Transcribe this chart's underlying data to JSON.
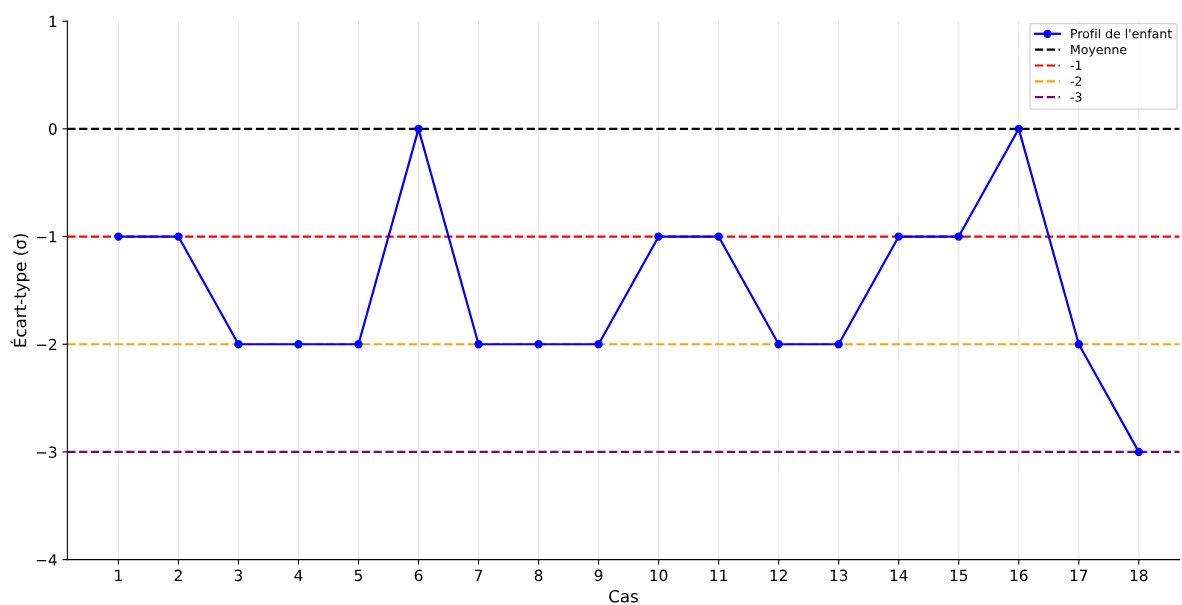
{
  "chart_data": {
    "type": "line",
    "xlabel": "Cas",
    "ylabel": "Écart-type (σ)",
    "categories": [
      "1",
      "2",
      "3",
      "4",
      "5",
      "6",
      "7",
      "8",
      "9",
      "10",
      "11",
      "12",
      "13",
      "14",
      "15",
      "16",
      "17",
      "18"
    ],
    "series": [
      {
        "name": "Profil de l'enfant",
        "color": "#0000ff",
        "values": [
          -1,
          -1,
          -2,
          -2,
          -2,
          0,
          -2,
          -2,
          -2,
          -1,
          -1,
          -2,
          -2,
          -1,
          -1,
          0,
          -2,
          -3
        ]
      }
    ],
    "marker": "circle",
    "line_style": "solid",
    "ylim": [
      -4,
      1
    ],
    "yticks": [
      {
        "value": -4,
        "label": "−4"
      },
      {
        "value": -3,
        "label": "−3"
      },
      {
        "value": -2,
        "label": "−2"
      },
      {
        "value": -1,
        "label": "−1"
      },
      0,
      1
    ],
    "ref_lines": [
      {
        "axis": "y",
        "value": 0,
        "label": "Moyenne",
        "color": "#000000",
        "line_style": "dashed"
      },
      {
        "axis": "y",
        "value": -1,
        "label": "-1",
        "color": "#ff0000",
        "line_style": "dashed"
      },
      {
        "axis": "y",
        "value": -2,
        "label": "-2",
        "color": "#ffa500",
        "line_style": "dashed"
      },
      {
        "axis": "y",
        "value": -3,
        "label": "-3",
        "color": "#800080",
        "line_style": "dashed"
      }
    ],
    "grid": "x",
    "legend": "top right"
  }
}
